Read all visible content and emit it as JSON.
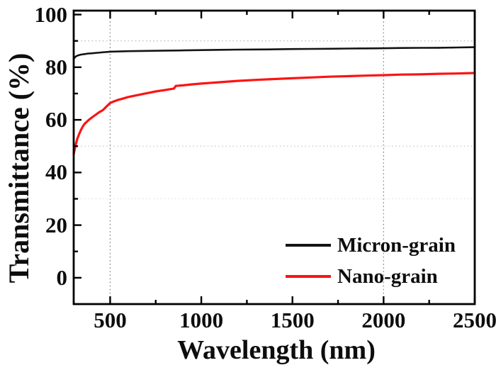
{
  "figure": {
    "background_color": "#ffffff",
    "frame_color": "#000000",
    "text_color": "#0d0d0d"
  },
  "chart_data": {
    "type": "line",
    "title": "",
    "xlabel": "Wavelength (nm)",
    "ylabel": "Transmittance (%)",
    "xlim": [
      300,
      2500
    ],
    "ylim": [
      -10,
      101.5
    ],
    "x_major_ticks": [
      500,
      1000,
      1500,
      2000,
      2500
    ],
    "x_minor_ticks": [
      750,
      1250,
      1750,
      2250
    ],
    "y_major_ticks": [
      0,
      20,
      40,
      60,
      80,
      100
    ],
    "y_minor_ticks": [
      10,
      30,
      50,
      70,
      90
    ],
    "grid": {
      "vertical_dotted_lines": [
        {
          "x": 500,
          "color": "#8a8a8a"
        },
        {
          "x": 2000,
          "color": "#8a8a8a"
        }
      ],
      "horizontal_dotted_lines": [
        {
          "y": 90,
          "color": "#c3c3c3"
        },
        {
          "y": 50,
          "color": "#cccccc"
        },
        {
          "y": 30,
          "color": "#e2e2e2"
        }
      ]
    },
    "legend": {
      "position": "lower-right",
      "entries": [
        {
          "label": "Micron-grain",
          "color": "#141414"
        },
        {
          "label": "Nano-grain",
          "color": "#fb1414"
        }
      ]
    },
    "series": [
      {
        "name": "Micron-grain",
        "color": "#141414",
        "stroke_width": 2.6,
        "points": [
          [
            300,
            83.2
          ],
          [
            310,
            84.0
          ],
          [
            320,
            84.4
          ],
          [
            340,
            84.8
          ],
          [
            360,
            85.0
          ],
          [
            380,
            85.2
          ],
          [
            400,
            85.3
          ],
          [
            450,
            85.6
          ],
          [
            500,
            85.9
          ],
          [
            550,
            86.0
          ],
          [
            600,
            86.1
          ],
          [
            700,
            86.2
          ],
          [
            800,
            86.3
          ],
          [
            900,
            86.4
          ],
          [
            1000,
            86.5
          ],
          [
            1100,
            86.6
          ],
          [
            1200,
            86.7
          ],
          [
            1300,
            86.75
          ],
          [
            1400,
            86.8
          ],
          [
            1500,
            86.9
          ],
          [
            1600,
            86.95
          ],
          [
            1700,
            87.0
          ],
          [
            1800,
            87.1
          ],
          [
            1900,
            87.15
          ],
          [
            2000,
            87.2
          ],
          [
            2100,
            87.3
          ],
          [
            2200,
            87.35
          ],
          [
            2300,
            87.4
          ],
          [
            2400,
            87.5
          ],
          [
            2500,
            87.6
          ]
        ]
      },
      {
        "name": "Nano-grain",
        "color": "#fb1414",
        "stroke_width": 3.2,
        "points": [
          [
            300,
            47.0
          ],
          [
            310,
            50.3
          ],
          [
            320,
            52.8
          ],
          [
            330,
            54.6
          ],
          [
            340,
            56.2
          ],
          [
            350,
            57.5
          ],
          [
            360,
            58.5
          ],
          [
            380,
            59.8
          ],
          [
            400,
            60.9
          ],
          [
            420,
            61.9
          ],
          [
            440,
            62.9
          ],
          [
            460,
            63.7
          ],
          [
            480,
            65.1
          ],
          [
            500,
            66.4
          ],
          [
            520,
            67.0
          ],
          [
            540,
            67.5
          ],
          [
            560,
            67.9
          ],
          [
            580,
            68.3
          ],
          [
            600,
            68.7
          ],
          [
            650,
            69.4
          ],
          [
            700,
            70.1
          ],
          [
            750,
            70.8
          ],
          [
            800,
            71.3
          ],
          [
            850,
            71.9
          ],
          [
            860,
            72.9
          ],
          [
            900,
            73.1
          ],
          [
            950,
            73.5
          ],
          [
            1000,
            73.8
          ],
          [
            1100,
            74.3
          ],
          [
            1200,
            74.8
          ],
          [
            1300,
            75.2
          ],
          [
            1400,
            75.5
          ],
          [
            1500,
            75.8
          ],
          [
            1600,
            76.1
          ],
          [
            1700,
            76.4
          ],
          [
            1800,
            76.6
          ],
          [
            1900,
            76.8
          ],
          [
            2000,
            77.0
          ],
          [
            2100,
            77.2
          ],
          [
            2200,
            77.3
          ],
          [
            2300,
            77.5
          ],
          [
            2400,
            77.6
          ],
          [
            2500,
            77.8
          ]
        ]
      }
    ]
  }
}
